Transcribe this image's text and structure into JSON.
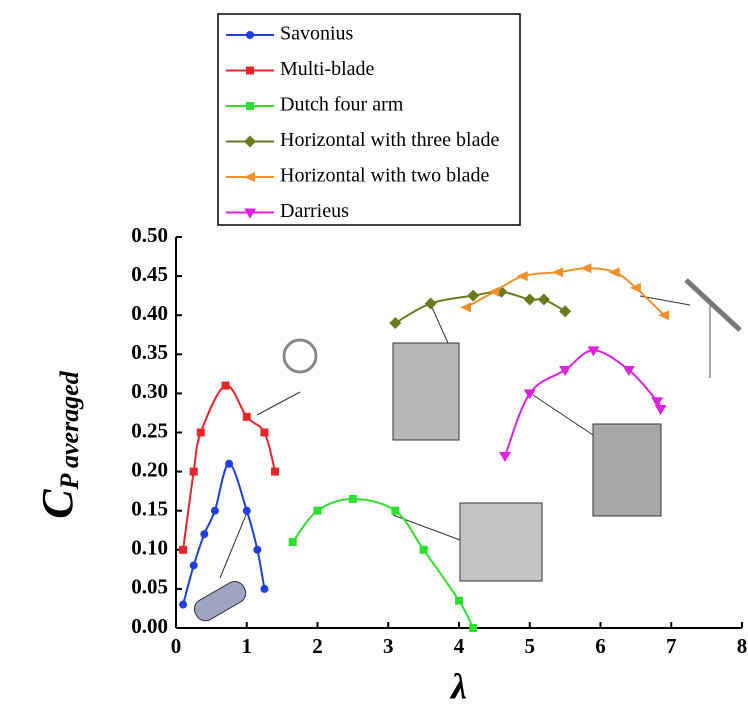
{
  "chart_data": {
    "type": "line",
    "ylabel": {
      "main": "C",
      "sub": "P averaged"
    },
    "xlabel": "λ",
    "xlim": [
      0,
      8
    ],
    "xticks": [
      0,
      1,
      2,
      3,
      4,
      5,
      6,
      7,
      8
    ],
    "ylim": [
      0,
      0.5
    ],
    "yticks": [
      {
        "value": 0,
        "label": "0.00"
      },
      {
        "value": 0.05,
        "label": "0.05"
      },
      {
        "value": 0.1,
        "label": "0.10"
      },
      {
        "value": 0.15,
        "label": "0.15"
      },
      {
        "value": 0.2,
        "label": "0.20"
      },
      {
        "value": 0.25,
        "label": "0.25"
      },
      {
        "value": 0.3,
        "label": "0.30"
      },
      {
        "value": 0.35,
        "label": "0.35"
      },
      {
        "value": 0.4,
        "label": "0.40"
      },
      {
        "value": 0.45,
        "label": "0.45"
      },
      {
        "value": 0.5,
        "label": "0.50"
      }
    ],
    "series": [
      {
        "name": "Savonius",
        "color": "#1f3fe0",
        "marker": "circle",
        "x": [
          0.1,
          0.25,
          0.4,
          0.55,
          0.75,
          1.0,
          1.15,
          1.25
        ],
        "values": [
          0.03,
          0.08,
          0.12,
          0.15,
          0.21,
          0.15,
          0.1,
          0.05
        ]
      },
      {
        "name": "Multi-blade",
        "color": "#e8252a",
        "marker": "square",
        "x": [
          0.1,
          0.25,
          0.35,
          0.7,
          1.0,
          1.25,
          1.4
        ],
        "values": [
          0.1,
          0.2,
          0.25,
          0.31,
          0.27,
          0.25,
          0.2
        ]
      },
      {
        "name": "Dutch four arm",
        "color": "#2ee02e",
        "marker": "square",
        "x": [
          1.65,
          2.0,
          2.5,
          3.1,
          3.5,
          4.0,
          4.2
        ],
        "values": [
          0.11,
          0.15,
          0.165,
          0.15,
          0.1,
          0.035,
          0.0
        ]
      },
      {
        "name": "Horizontal with three blade",
        "color": "#6b7a1e",
        "marker": "diamond",
        "x": [
          3.1,
          3.6,
          4.2,
          4.6,
          5.0,
          5.2,
          5.5
        ],
        "values": [
          0.39,
          0.415,
          0.425,
          0.43,
          0.42,
          0.42,
          0.405
        ]
      },
      {
        "name": "Horizontal with two blade",
        "color": "#f0902a",
        "marker": "left",
        "x": [
          4.1,
          4.5,
          4.9,
          5.4,
          5.8,
          6.2,
          6.5,
          6.9
        ],
        "values": [
          0.41,
          0.43,
          0.45,
          0.455,
          0.46,
          0.455,
          0.435,
          0.4
        ]
      },
      {
        "name": "Darrieus",
        "color": "#e020e0",
        "marker": "down",
        "x": [
          4.65,
          5.0,
          5.5,
          5.9,
          6.4,
          6.8,
          6.85
        ],
        "values": [
          0.22,
          0.3,
          0.33,
          0.355,
          0.33,
          0.29,
          0.28
        ]
      }
    ]
  }
}
